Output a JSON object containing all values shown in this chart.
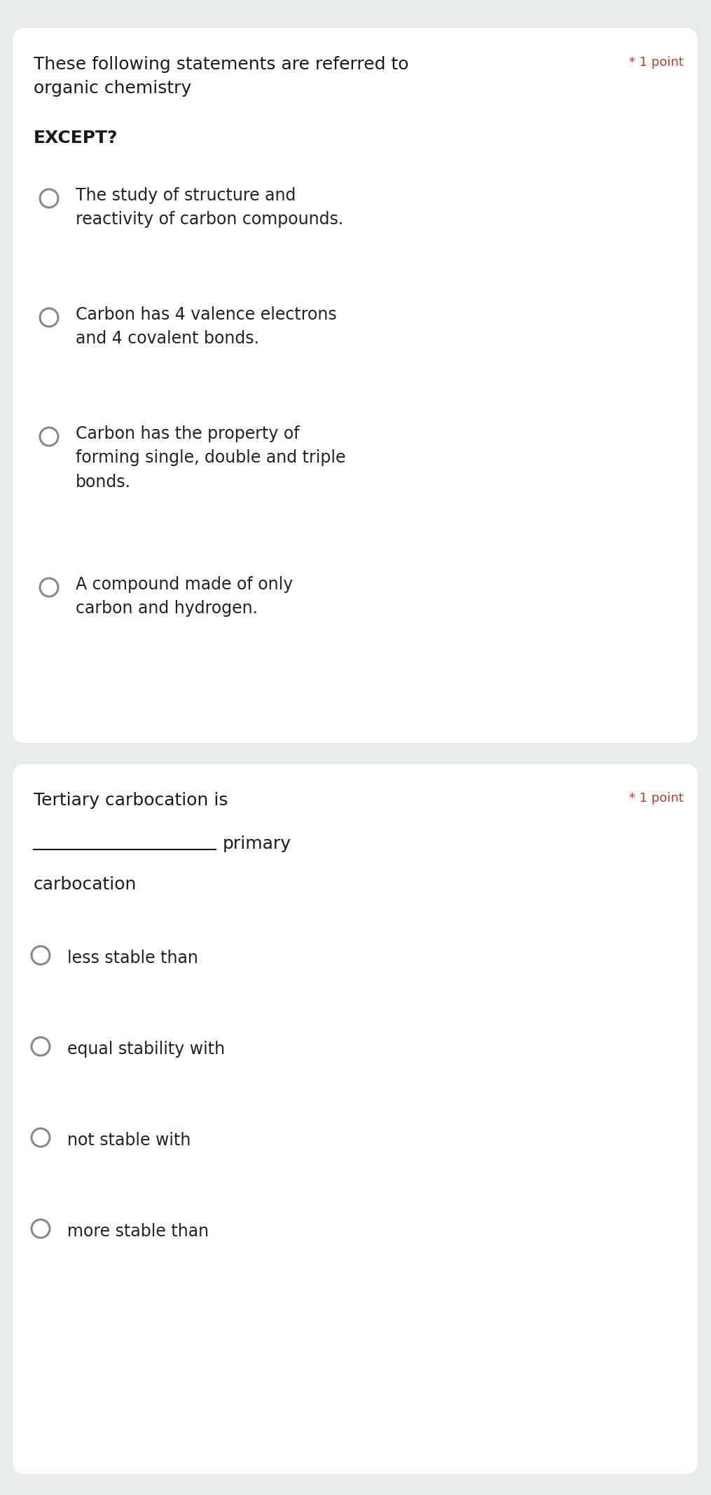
{
  "bg_color": "#e8ece8",
  "card_color": "#ffffff",
  "question1": {
    "point_label": "* 1 point",
    "point_color": "#c0392b",
    "options": [
      "The study of structure and\nreactivity of carbon compounds.",
      "Carbon has 4 valence electrons\nand 4 covalent bonds.",
      "Carbon has the property of\nforming single, double and triple\nbonds.",
      "A compound made of only\ncarbon and hydrogen."
    ]
  },
  "question2": {
    "point_label": "* 1 point",
    "point_color": "#c0392b",
    "options": [
      "less stable than",
      "equal stability with",
      "not stable with",
      "more stable than"
    ]
  },
  "text_color": "#1a1a1a",
  "option_text_color": "#222222",
  "circle_edge_color": "#888888",
  "font_size_title": 18,
  "font_size_option": 17,
  "font_size_point": 13
}
